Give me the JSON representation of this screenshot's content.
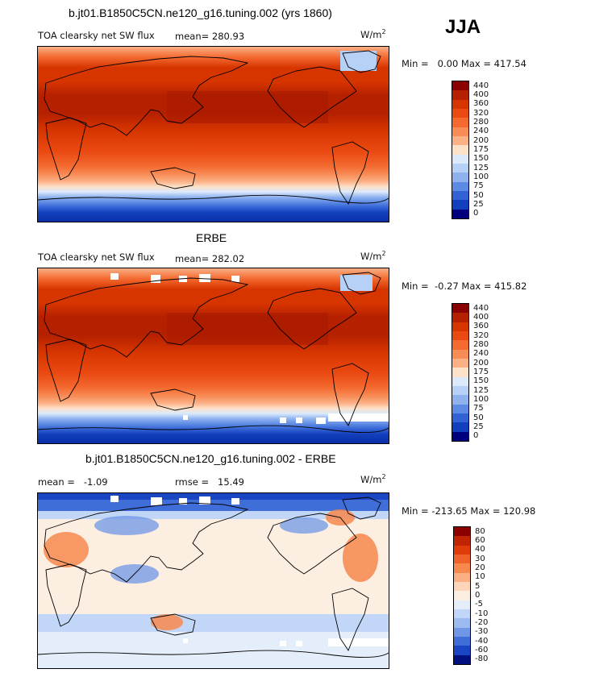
{
  "season": "JJA",
  "chart_data": [
    {
      "type": "heatmap",
      "title": "b.jt01.B1850C5CN.ne120_g16.tuning.002 (yrs 1860)",
      "variable_label": "TOA clearsky net SW flux",
      "mean_text": "mean= 280.93",
      "units_base": "W/m",
      "units_exp": "2",
      "minmax_text": "Min =   0.00 Max = 417.54",
      "min": 0.0,
      "max": 417.54,
      "levels": [
        "440",
        "400",
        "360",
        "320",
        "280",
        "240",
        "200",
        "175",
        "150",
        "125",
        "100",
        "75",
        "50",
        "25",
        "0"
      ],
      "colors": [
        "#8b0000",
        "#b52000",
        "#d73500",
        "#ea4a12",
        "#f3692f",
        "#f88c57",
        "#fbb085",
        "#fde0c8",
        "#dbe9fb",
        "#b7d0f6",
        "#8fb2ef",
        "#5d8ae3",
        "#3262d4",
        "#123fbc",
        "#00007f"
      ]
    },
    {
      "type": "heatmap",
      "title": "ERBE",
      "variable_label": "TOA clearsky net SW flux",
      "mean_text": "mean= 282.02",
      "units_base": "W/m",
      "units_exp": "2",
      "minmax_text": "Min =  -0.27 Max = 415.82",
      "min": -0.27,
      "max": 415.82,
      "levels": [
        "440",
        "400",
        "360",
        "320",
        "280",
        "240",
        "200",
        "175",
        "150",
        "125",
        "100",
        "75",
        "50",
        "25",
        "0"
      ],
      "colors": [
        "#8b0000",
        "#b52000",
        "#d73500",
        "#ea4a12",
        "#f3692f",
        "#f88c57",
        "#fbb085",
        "#fde0c8",
        "#dbe9fb",
        "#b7d0f6",
        "#8fb2ef",
        "#5d8ae3",
        "#3262d4",
        "#123fbc",
        "#00007f"
      ]
    },
    {
      "type": "heatmap",
      "title": "b.jt01.B1850C5CN.ne120_g16.tuning.002 - ERBE",
      "mean_text": "mean =   -1.09",
      "rmse_text": "rmse =   15.49",
      "units_base": "W/m",
      "units_exp": "2",
      "minmax_text": "Min = -213.65 Max = 120.98",
      "min": -213.65,
      "max": 120.98,
      "levels": [
        "80",
        "60",
        "40",
        "30",
        "20",
        "10",
        "5",
        "0",
        "-5",
        "-10",
        "-20",
        "-30",
        "-40",
        "-60",
        "-80"
      ],
      "colors": [
        "#8b0000",
        "#c02400",
        "#e03c0a",
        "#f0622a",
        "#f7894f",
        "#fbaf83",
        "#fdd5bb",
        "#fdeee2",
        "#e4eefb",
        "#c2d7f7",
        "#9bbbf1",
        "#6f97e6",
        "#3f6ed9",
        "#1a46c4",
        "#00117f"
      ]
    }
  ]
}
